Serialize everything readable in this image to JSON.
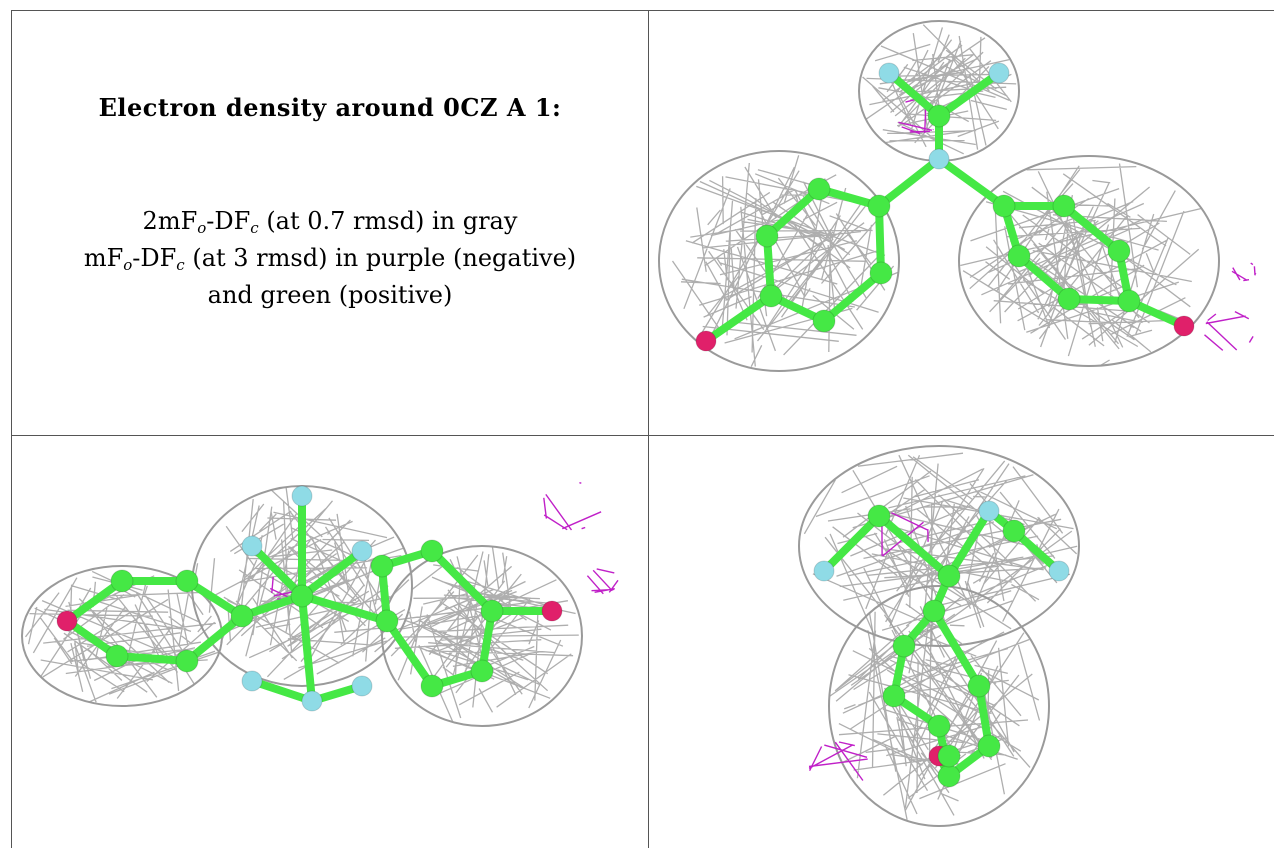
{
  "title": "Electron density around 0CZ A 1:",
  "legend": {
    "line1": {
      "a": "2mF",
      "sub_o": "o",
      "b": "-DF",
      "sub_c": "c",
      "rest": " (at 0.7 rmsd) in gray"
    },
    "line2": {
      "a": "mF",
      "sub_o": "o",
      "b": "-DF",
      "sub_c": "c",
      "rest": " (at 3 rmsd) in purple (negative)"
    },
    "line3": "and green (positive)"
  },
  "colors": {
    "mesh_2fofc": "#9a9a9a",
    "negative_density": "#c020c8",
    "carbon": "#45e845",
    "oxygen": "#e0206a",
    "fluorine": "#8fdbe6",
    "border": "#555555"
  },
  "panels": [
    "top-right-view",
    "bottom-left-view",
    "bottom-right-view"
  ]
}
